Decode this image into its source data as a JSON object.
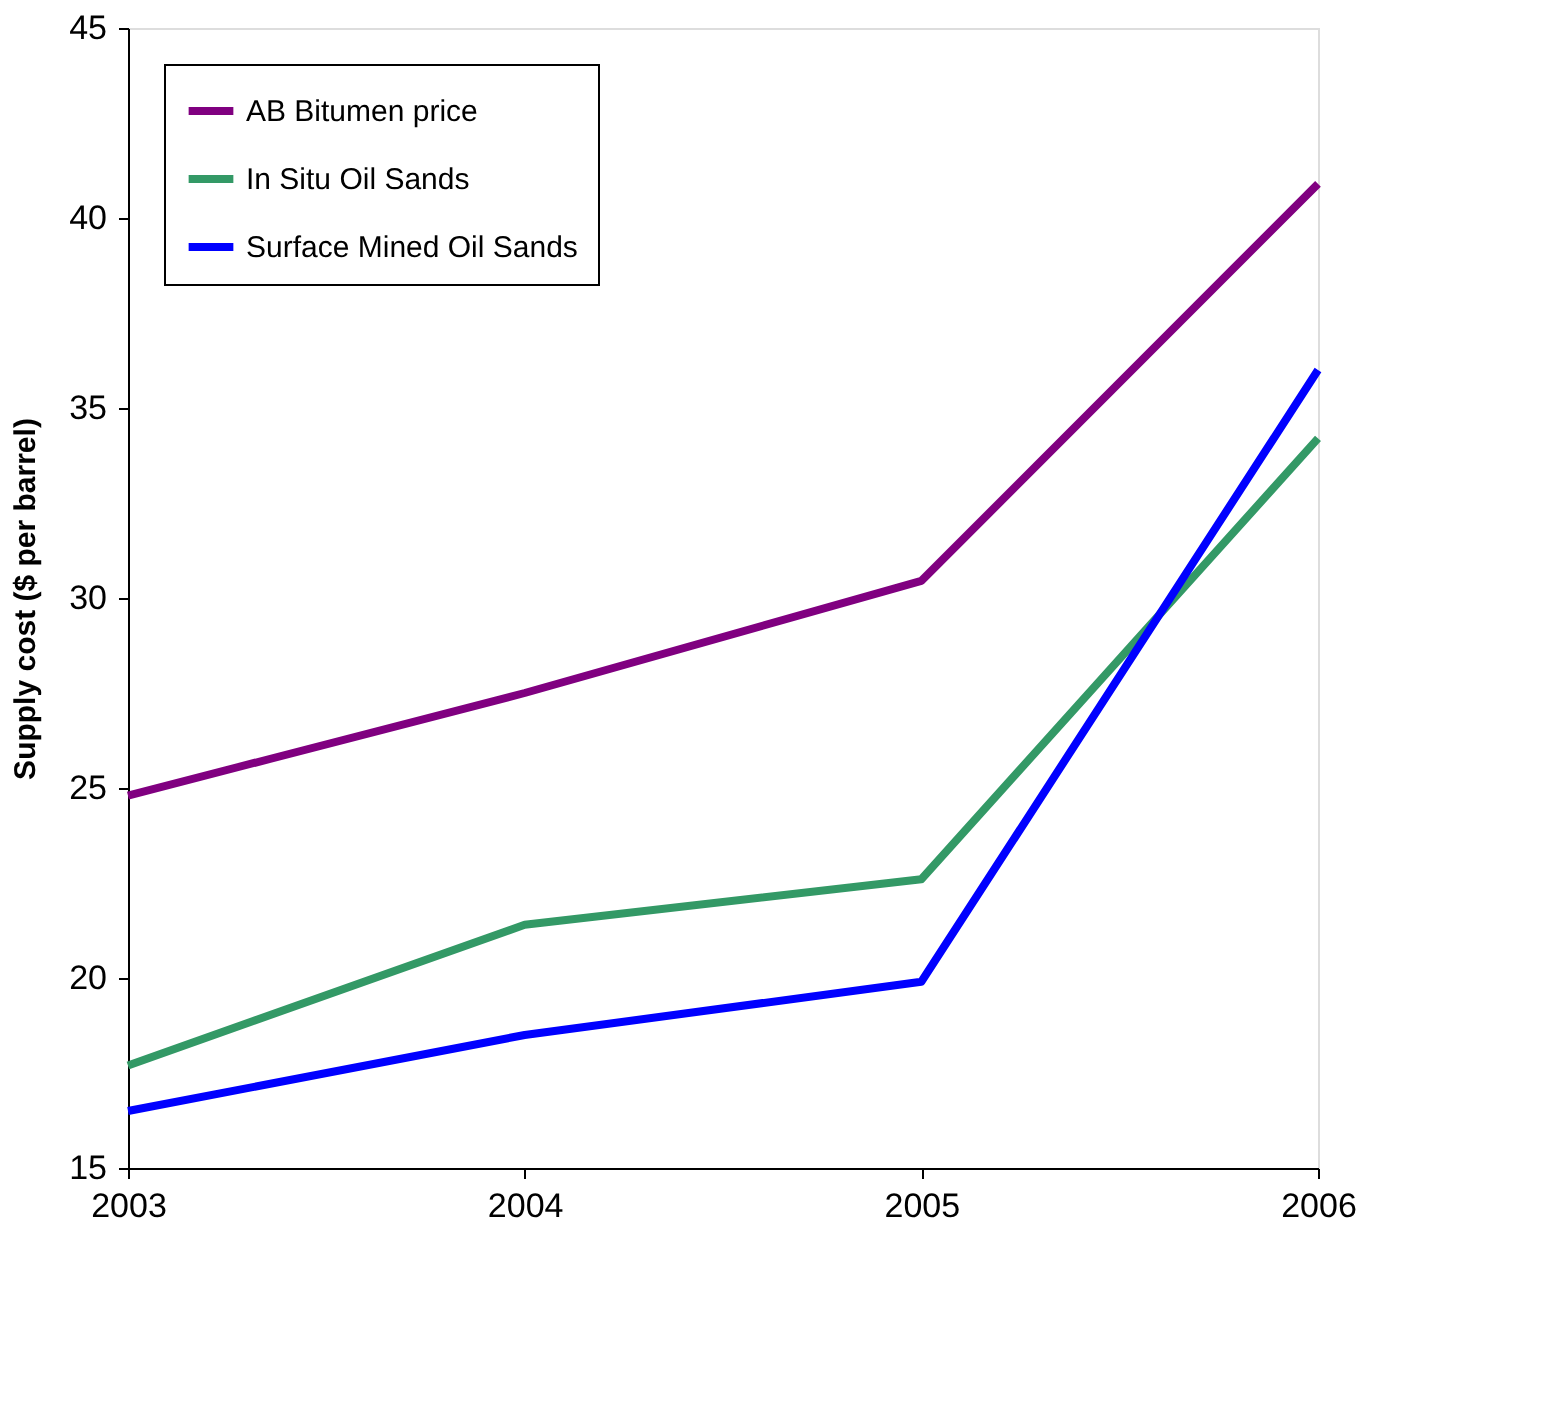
{
  "chart_data": {
    "type": "line",
    "ylabel": "Supply cost ($ per barrel)",
    "x": [
      2003,
      2004,
      2005,
      2006
    ],
    "series": [
      {
        "name": "AB Bitumen price",
        "color": "#800080",
        "values": [
          24.8,
          27.5,
          30.45,
          40.9
        ]
      },
      {
        "name": "In Situ Oil Sands",
        "color": "#339966",
        "values": [
          17.7,
          21.4,
          22.6,
          34.2
        ]
      },
      {
        "name": "Surface Mined Oil Sands",
        "color": "#0000ff",
        "values": [
          16.5,
          18.5,
          19.9,
          36.0
        ]
      }
    ],
    "xlim": [
      2003,
      2006
    ],
    "xticks": [
      2003,
      2004,
      2005,
      2006
    ],
    "ylim": [
      15,
      45
    ],
    "yticks": [
      15,
      20,
      25,
      30,
      35,
      40,
      45
    ],
    "grid": false,
    "legend": "top left",
    "marker": "none",
    "line_style": "solid"
  }
}
